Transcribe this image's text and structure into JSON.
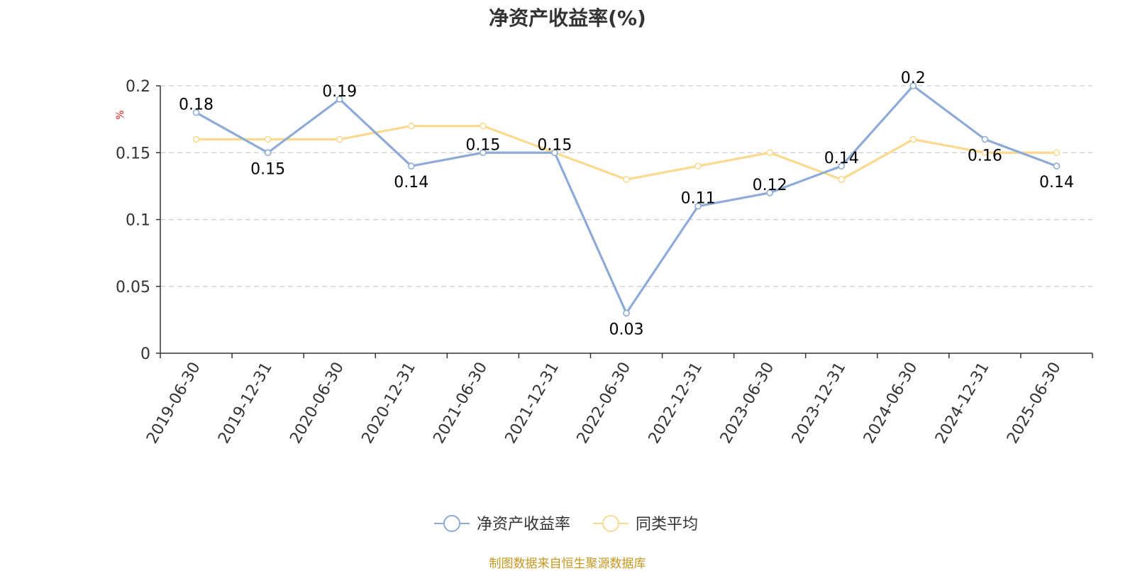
{
  "chart_data": {
    "type": "line",
    "title": "净资产收益率(%)",
    "ylabel": "%",
    "xlabel": "",
    "ylim": [
      0,
      0.2
    ],
    "yticks": [
      "0",
      "0.05",
      "0.1",
      "0.15",
      "0.2"
    ],
    "ytick_values": [
      0,
      0.05,
      0.1,
      0.15,
      0.2
    ],
    "categories": [
      "2019-06-30",
      "2019-12-31",
      "2020-06-30",
      "2020-12-31",
      "2021-06-30",
      "2021-12-31",
      "2022-06-30",
      "2022-12-31",
      "2023-06-30",
      "2023-12-31",
      "2024-06-30",
      "2024-12-31",
      "2025-06-30"
    ],
    "grid": "horizontal-dashed",
    "legend_position": "bottom-center",
    "series": [
      {
        "name": "净资产收益率",
        "color": "#8eaad6",
        "values": [
          0.18,
          0.15,
          0.19,
          0.14,
          0.15,
          0.15,
          0.03,
          0.11,
          0.12,
          0.14,
          0.2,
          0.16,
          0.14
        ],
        "data_labels": [
          "0.18",
          "0.15",
          "0.19",
          "0.14",
          "0.15",
          "0.15",
          "0.03",
          "0.11",
          "0.12",
          "0.14",
          "0.2",
          "0.16",
          "0.14"
        ]
      },
      {
        "name": "同类平均",
        "color": "#fbd98e",
        "values": [
          0.16,
          0.16,
          0.16,
          0.17,
          0.17,
          0.15,
          0.13,
          0.14,
          0.15,
          0.13,
          0.16,
          0.15,
          0.15
        ]
      }
    ]
  },
  "source_note": "制图数据来自恒生聚源数据库",
  "colors": {
    "axis": "#333333",
    "grid": "#cccccc",
    "ylabel": "#e02020",
    "source": "#c8961e"
  }
}
